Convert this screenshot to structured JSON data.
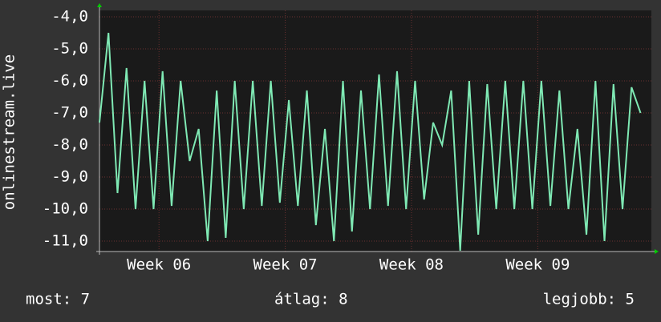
{
  "chart_data": {
    "type": "line",
    "y_label": "onlinestream.live",
    "x": [
      0,
      0.5,
      1,
      1.5,
      2,
      2.5,
      3,
      3.5,
      4,
      4.5,
      5,
      5.5,
      6,
      6.5,
      7,
      7.5,
      8,
      8.5,
      9,
      9.5,
      10,
      10.5,
      11,
      11.5,
      12,
      12.5,
      13,
      13.5,
      14,
      14.5,
      15,
      15.5,
      16,
      16.5,
      17,
      17.5,
      18,
      18.5,
      19,
      19.5,
      20,
      20.5,
      21,
      21.5,
      22,
      22.5,
      23,
      23.5,
      24,
      24.5,
      25,
      25.5,
      26,
      26.5,
      27,
      27.5,
      28,
      28.5,
      29,
      29.5,
      30
    ],
    "series": [
      {
        "name": "onlinestream.live",
        "color": "#7fe9b4",
        "values": [
          -7.3,
          -4.5,
          -9.5,
          -5.6,
          -10,
          -6,
          -10,
          -5.7,
          -9.9,
          -6,
          -8.5,
          -7.5,
          -11,
          -6.3,
          -10.9,
          -6,
          -10,
          -6,
          -9.9,
          -6,
          -9.8,
          -6.6,
          -9.9,
          -6.3,
          -10.5,
          -7.5,
          -11,
          -6,
          -10.7,
          -6.3,
          -10,
          -5.8,
          -9.9,
          -5.7,
          -10,
          -6,
          -9.7,
          -7.3,
          -8,
          -6.3,
          -11.3,
          -6,
          -10.8,
          -6.1,
          -10,
          -6,
          -10,
          -6,
          -10,
          -6,
          -9.9,
          -6.3,
          -10,
          -7.5,
          -10.8,
          -6,
          -11,
          -6.1,
          -10,
          -6.2,
          -7
        ]
      }
    ],
    "xlim": [
      0,
      30.6
    ],
    "xticks": [
      {
        "value": 3.3,
        "label": "Week 06"
      },
      {
        "value": 10.3,
        "label": "Week 07"
      },
      {
        "value": 17.3,
        "label": "Week 08"
      },
      {
        "value": 24.3,
        "label": "Week 09"
      }
    ],
    "ylim": [
      -11.325,
      -3.8
    ],
    "yticks": [
      {
        "value": -4,
        "label": "-4,0"
      },
      {
        "value": -5,
        "label": "-5,0"
      },
      {
        "value": -6,
        "label": "-6,0"
      },
      {
        "value": -7,
        "label": "-7,0"
      },
      {
        "value": -8,
        "label": "-8,0"
      },
      {
        "value": -9,
        "label": "-9,0"
      },
      {
        "value": -10,
        "label": "-10,0"
      },
      {
        "value": -11,
        "label": "-11,0"
      }
    ],
    "grid": true,
    "footer": [
      "most: 7",
      "átlag: 8",
      "legjobb: 5"
    ]
  }
}
